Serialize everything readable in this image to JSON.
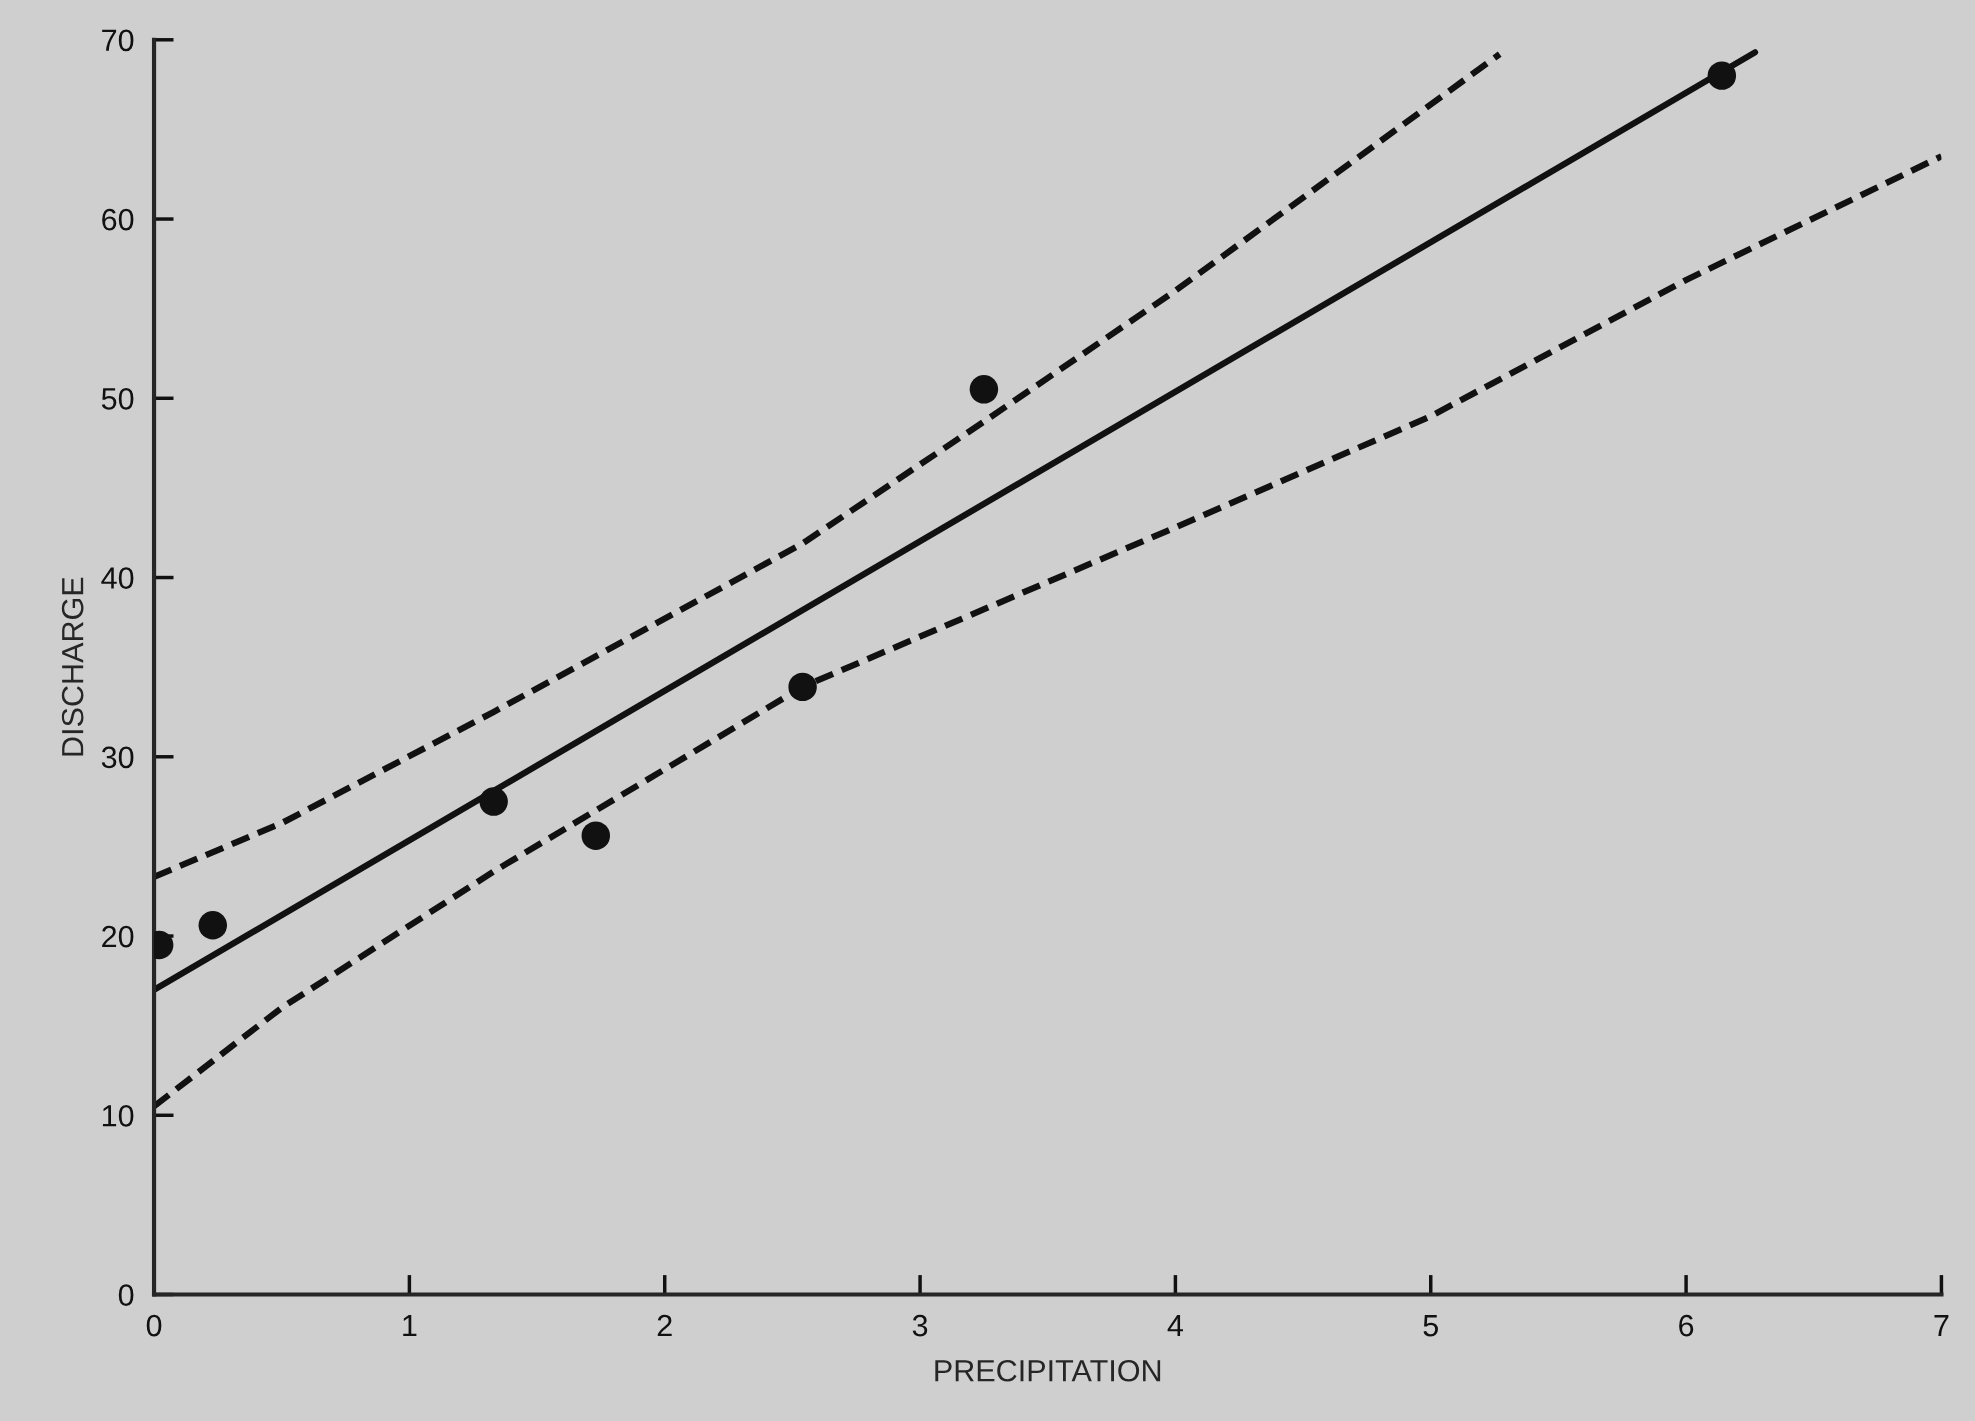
{
  "chart_data": {
    "type": "scatter",
    "xlabel": "PRECIPITATION",
    "ylabel": "DISCHARGE",
    "xlim": [
      0,
      7
    ],
    "ylim": [
      0,
      70
    ],
    "xticks": [
      0,
      1,
      2,
      3,
      4,
      5,
      6,
      7
    ],
    "yticks": [
      0,
      10,
      20,
      30,
      40,
      50,
      60,
      70
    ],
    "legend": false,
    "series": [
      {
        "marker": "circle",
        "color": "#111111",
        "x": [
          0.02,
          0.23,
          1.33,
          1.73,
          2.54,
          3.25,
          6.14
        ],
        "values": [
          19.5,
          20.6,
          27.5,
          25.6,
          33.9,
          50.5,
          68.0
        ]
      },
      {
        "type": "line",
        "line_style": "solid",
        "marker": "none",
        "color": "#111111",
        "x": [
          0,
          6.27
        ],
        "values": [
          17.0,
          69.3
        ]
      },
      {
        "type": "line",
        "line_style": "dashed",
        "marker": "none",
        "color": "#111111",
        "x": [
          0,
          0.5,
          1.33,
          2.54,
          3.25,
          4,
          5.27
        ],
        "values": [
          23.3,
          26.3,
          32.5,
          41.9,
          48.7,
          56.0,
          69.2
        ]
      },
      {
        "type": "line",
        "line_style": "dashed",
        "marker": "none",
        "color": "#111111",
        "x": [
          0,
          0.5,
          1.33,
          2.54,
          4,
          5,
          6,
          7
        ],
        "values": [
          10.5,
          16.0,
          23.6,
          33.9,
          42.8,
          49.0,
          56.6,
          63.5
        ]
      }
    ]
  }
}
